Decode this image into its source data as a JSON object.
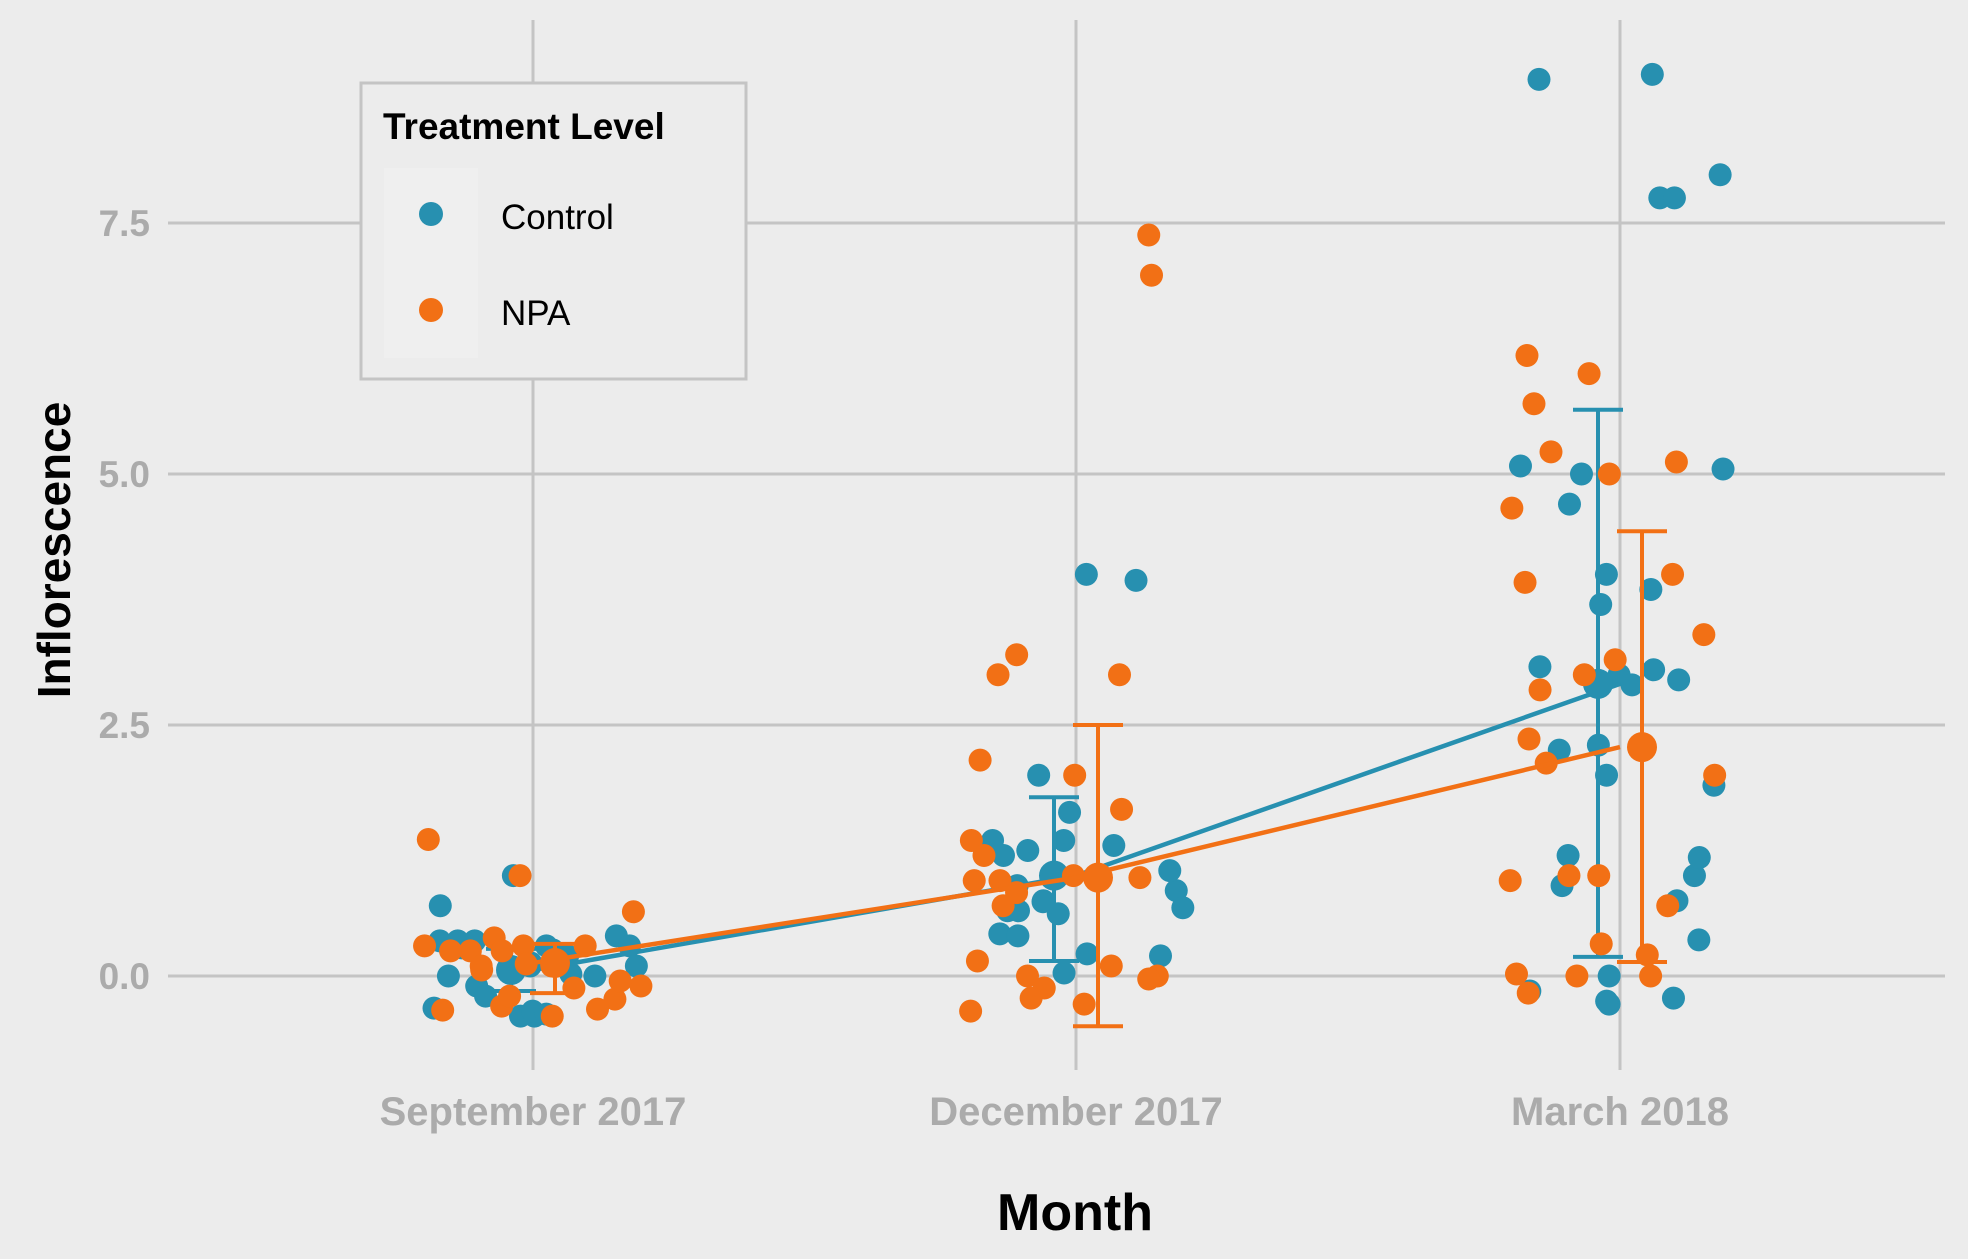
{
  "chart_data": {
    "type": "scatter",
    "xlabel": "Month",
    "ylabel": "Inflorescence",
    "categories": [
      "September 2017",
      "December 2017",
      "March 2018"
    ],
    "yticks": [
      "0.0",
      "2.5",
      "5.0",
      "7.5"
    ],
    "ytick_values": [
      0,
      2.5,
      5,
      7.5
    ],
    "ylim": [
      -0.9,
      9.6
    ],
    "grid": true,
    "legend": {
      "title": "Treatment Level",
      "position": "top-left",
      "entries": [
        "Control",
        "NPA"
      ]
    },
    "series": [
      {
        "name": "Control",
        "color": "#2790b0",
        "means": [
          0.06,
          1.0,
          2.91
        ],
        "error_low": [
          -0.15,
          0.15,
          0.19
        ],
        "error_high": [
          0.27,
          1.78,
          5.64
        ],
        "points": [
          {
            "x": "September 2017",
            "y": [
              0.13,
              0.3,
              0.0,
              -0.1,
              -0.4,
              -0.4,
              0.7,
              0.4,
              0.26,
              1.0,
              -0.2,
              0.0,
              0.2,
              0.35,
              -0.35,
              0.35,
              0.02,
              0.35,
              -0.38,
              0.1,
              0.28,
              -0.32,
              0.3,
              0.1
            ]
          },
          {
            "x": "December 2017",
            "y": [
              1.35,
              1.35,
              0.85,
              0.65,
              0.62,
              0.22,
              1.3,
              1.25,
              1.2,
              0.68,
              0.03,
              0.9,
              4.0,
              2.0,
              0.42,
              3.94,
              0.75,
              0.74,
              1.28,
              1.05,
              0.65,
              0.2,
              1.63,
              0.4,
              1.0
            ]
          },
          {
            "x": "March 2018",
            "y": [
              2.3,
              0.75,
              3.05,
              3.08,
              2.25,
              -0.28,
              -0.15,
              5.08,
              3.7,
              7.75,
              8.98,
              7.98,
              5.0,
              4.0,
              3.0,
              2.0,
              1.0,
              0.0,
              -0.25,
              1.2,
              0.9,
              -0.22,
              8.93,
              4.7,
              2.95,
              0.36,
              5.05,
              1.9,
              1.18,
              7.75,
              3.85,
              2.9
            ]
          }
        ]
      },
      {
        "name": "NPA",
        "color": "#f27015",
        "means": [
          0.13,
          0.98,
          2.28
        ],
        "error_low": [
          -0.17,
          -0.5,
          0.14
        ],
        "error_high": [
          0.32,
          2.5,
          4.43
        ],
        "points": [
          {
            "x": "September 2017",
            "y": [
              1.36,
              0.38,
              -0.3,
              0.25,
              -0.2,
              -0.12,
              0.3,
              0.06,
              0.64,
              0.3,
              0.25,
              0.1,
              1.0,
              -0.34,
              -0.1,
              0.3,
              -0.23,
              -0.4,
              0.12,
              0.25,
              -0.33,
              -0.05,
              0.1
            ]
          },
          {
            "x": "December 2017",
            "y": [
              1.35,
              0.95,
              1.66,
              3.0,
              0.1,
              0.0,
              0.83,
              -0.03,
              0.7,
              0.95,
              1.2,
              -0.35,
              -0.28,
              7.38,
              6.98,
              3.0,
              2.0,
              0.15,
              0.0,
              1.0,
              2.15,
              -0.12,
              3.2,
              -0.22,
              0.98
            ]
          },
          {
            "x": "March 2018",
            "y": [
              2.85,
              2.12,
              0.95,
              0.21,
              2.36,
              1.0,
              5.7,
              3.15,
              0.32,
              4.66,
              5.12,
              5.0,
              4.0,
              3.0,
              2.0,
              0.7,
              0.0,
              1.0,
              6.0,
              6.18,
              3.4,
              -0.17,
              3.92,
              5.22,
              0.0,
              0.02,
              2.28
            ]
          }
        ]
      }
    ]
  }
}
